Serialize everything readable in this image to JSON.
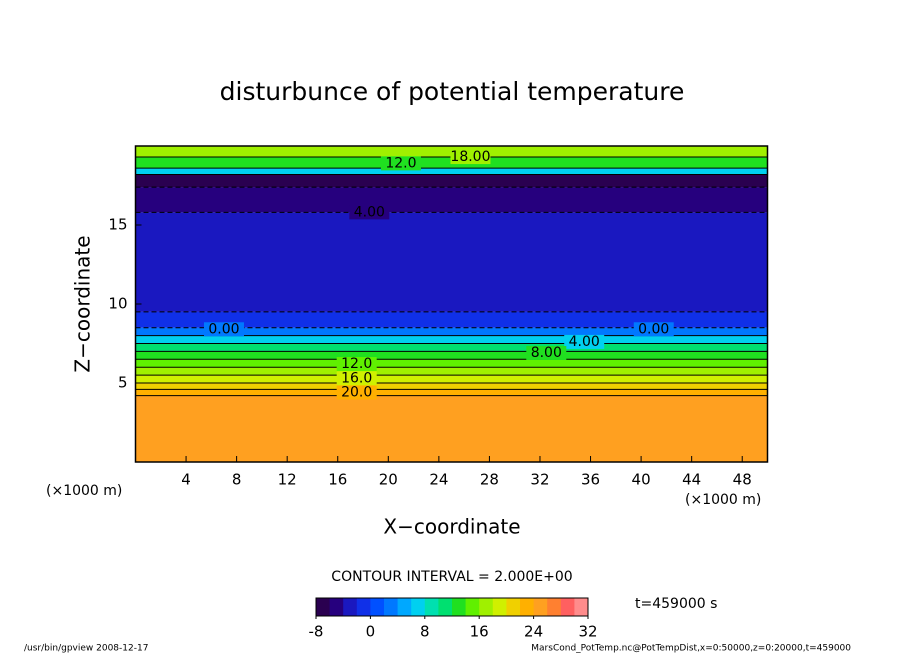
{
  "chart_data": {
    "type": "contour",
    "title": "disturbunce of potential temperature",
    "x_label": "X−coordinate",
    "y_label": "Z−coordinate",
    "x_unit": "(×1000 m)",
    "xlim": [
      0,
      50
    ],
    "xticks": [
      4,
      8,
      12,
      16,
      20,
      24,
      28,
      32,
      36,
      40,
      44,
      48
    ],
    "ylim": [
      0,
      20
    ],
    "yticks": [
      5,
      10,
      15
    ],
    "field": {
      "z_edges": [
        0,
        4.2,
        4.6,
        5.0,
        5.5,
        6.0,
        6.5,
        7.0,
        7.5,
        8.0,
        8.5,
        9.5,
        15.8,
        17.4,
        18.2,
        18.6,
        19.3,
        20
      ],
      "values": [
        25,
        22,
        20,
        18,
        16,
        14,
        12,
        10,
        6,
        2,
        -2,
        -4,
        -6,
        -8,
        6,
        12,
        16
      ]
    },
    "contour_labels": [
      {
        "text": "18.00",
        "x": 26.5,
        "z": 19.3
      },
      {
        "text": "12.0",
        "x": 21,
        "z": 18.9
      },
      {
        "text": "4.00",
        "x": 18.5,
        "z": 15.8
      },
      {
        "text": "0.00",
        "x": 7,
        "z": 8.4
      },
      {
        "text": "0.00",
        "x": 41,
        "z": 8.4
      },
      {
        "text": "4.00",
        "x": 35.5,
        "z": 7.6
      },
      {
        "text": "8.00",
        "x": 32.5,
        "z": 6.9
      },
      {
        "text": "12.0",
        "x": 17.5,
        "z": 6.2
      },
      {
        "text": "16.0",
        "x": 17.5,
        "z": 5.3
      },
      {
        "text": "20.0",
        "x": 17.5,
        "z": 4.4
      }
    ],
    "contour_interval": "CONTOUR INTERVAL = 2.000E+00",
    "clim": [
      -8,
      32
    ],
    "cticks": [
      -8,
      0,
      8,
      16,
      24,
      32
    ],
    "colormap": [
      "#2a0050",
      "#26007e",
      "#1a18c0",
      "#1030e8",
      "#0050ff",
      "#0078ff",
      "#00a8ff",
      "#00d0f0",
      "#00e0b0",
      "#00e070",
      "#20e020",
      "#60f000",
      "#a0f000",
      "#d0f000",
      "#f0d000",
      "#ffb000",
      "#ffa020",
      "#ff8030",
      "#ff6060",
      "#ff8c8c"
    ],
    "time_label": "t=459000 s",
    "footer_left": "/usr/bin/gpview   2008-12-17",
    "footer_right": "MarsCond_PotTemp.nc@PotTempDist,x=0:50000,z=0:20000,t=459000"
  }
}
